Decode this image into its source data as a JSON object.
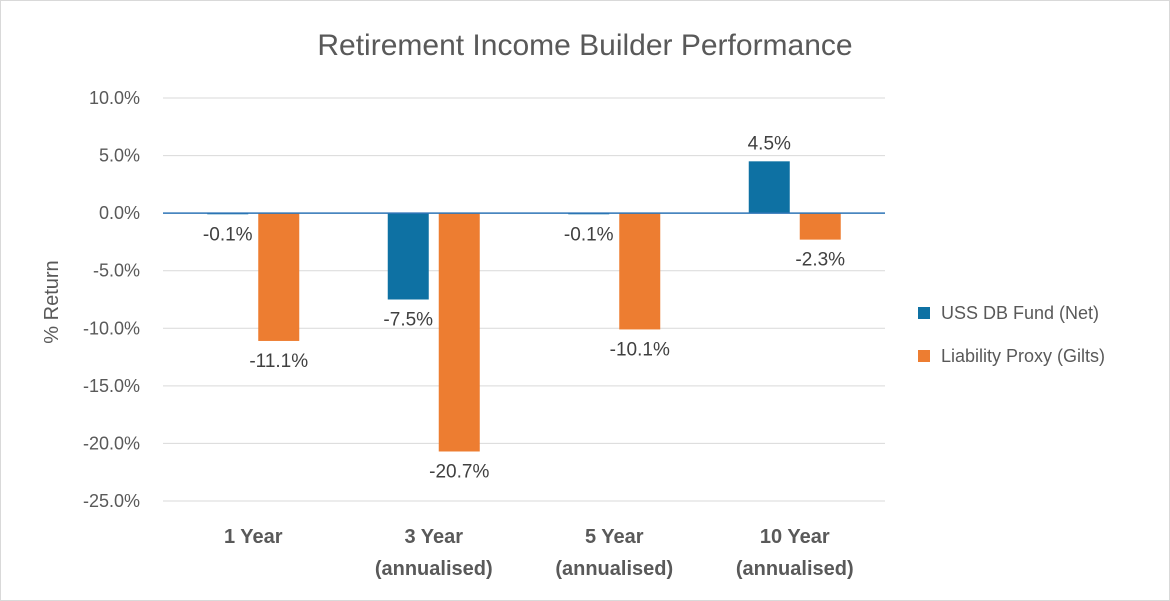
{
  "chart_data": {
    "type": "bar",
    "title": "Retirement Income Builder Performance",
    "ylabel": "% Return",
    "xlabel": "",
    "ylim": [
      -25,
      10
    ],
    "yticks": [
      10,
      5,
      0,
      -5,
      -10,
      -15,
      -20,
      -25
    ],
    "ytick_labels": [
      "10.0%",
      "5.0%",
      "0.0%",
      "-5.0%",
      "-10.0%",
      "-15.0%",
      "-20.0%",
      "-25.0%"
    ],
    "categories": [
      [
        "1 Year"
      ],
      [
        "3 Year",
        "(annualised)"
      ],
      [
        "5 Year",
        "(annualised)"
      ],
      [
        "10 Year",
        "(annualised)"
      ]
    ],
    "series": [
      {
        "name": "USS DB Fund (Net)",
        "color": "#0e71a3",
        "values": [
          -0.1,
          -7.5,
          -0.1,
          4.5
        ],
        "labels": [
          "-0.1%",
          "-7.5%",
          "-0.1%",
          "4.5%"
        ]
      },
      {
        "name": "Liability Proxy (Gilts)",
        "color": "#ed7d31",
        "values": [
          -11.1,
          -20.7,
          -10.1,
          -2.3
        ],
        "labels": [
          "-11.1%",
          "-20.7%",
          "-10.1%",
          "-2.3%"
        ]
      }
    ],
    "grid": true,
    "legend_position": "right"
  }
}
